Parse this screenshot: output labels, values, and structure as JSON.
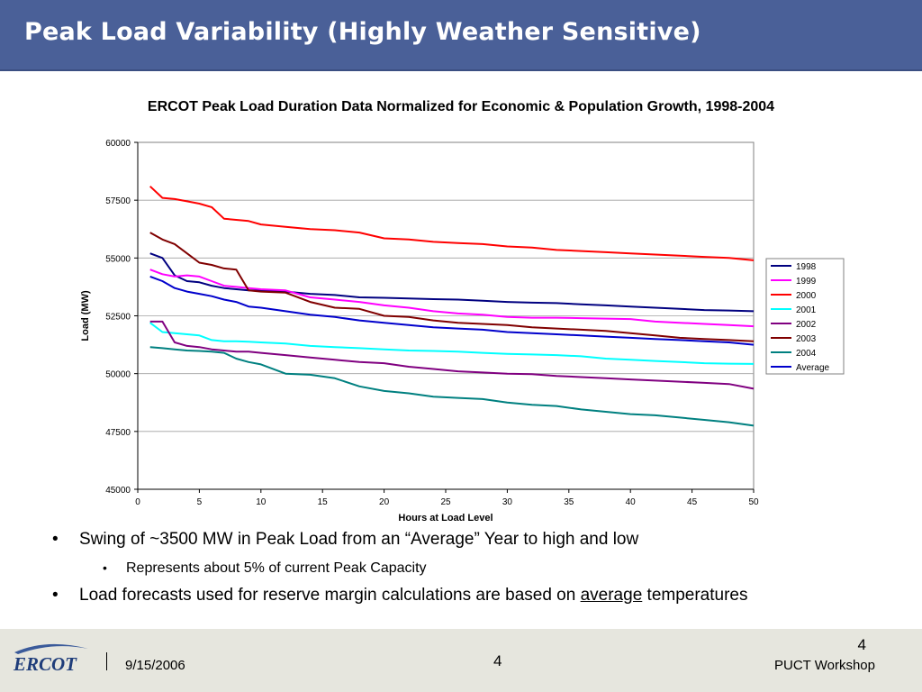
{
  "slide": {
    "title": "Peak Load Variability (Highly Weather Sensitive)",
    "bullets": [
      {
        "text": "Swing of ~3500 MW in Peak Load from an “Average” Year to high and low"
      },
      {
        "text": "Represents about 5% of current Peak Capacity"
      },
      {
        "before": "Load forecasts used for reserve margin calculations are based on ",
        "underlined": "average",
        "after": " temperatures"
      }
    ]
  },
  "footer": {
    "logo_text": "ERCOT",
    "date": "9/15/2006",
    "page_center": "4",
    "page_number": "4",
    "event": "PUCT Workshop"
  },
  "chart_data": {
    "type": "line",
    "title": "ERCOT Peak Load Duration Data Normalized for Economic & Population Growth, 1998-2004",
    "xlabel": "Hours at Load Level",
    "ylabel": "Load (MW)",
    "xlim": [
      0,
      50
    ],
    "ylim": [
      45000,
      60000
    ],
    "xticks": [
      0,
      5,
      10,
      15,
      20,
      25,
      30,
      35,
      40,
      45,
      50
    ],
    "yticks": [
      45000,
      47500,
      50000,
      52500,
      55000,
      57500,
      60000
    ],
    "grid": "horizontal",
    "legend_position": "right",
    "x": [
      1,
      2,
      3,
      4,
      5,
      6,
      7,
      8,
      9,
      10,
      12,
      14,
      16,
      18,
      20,
      22,
      24,
      26,
      28,
      30,
      32,
      34,
      36,
      38,
      40,
      42,
      44,
      46,
      48,
      50
    ],
    "series": [
      {
        "name": "1998",
        "color": "#000080",
        "values": [
          55200,
          55000,
          54250,
          54000,
          53950,
          53800,
          53700,
          53650,
          53600,
          53600,
          53550,
          53450,
          53400,
          53300,
          53280,
          53250,
          53220,
          53200,
          53150,
          53100,
          53070,
          53050,
          53000,
          52950,
          52900,
          52850,
          52800,
          52750,
          52730,
          52700
        ]
      },
      {
        "name": "1999",
        "color": "#ff00ff",
        "values": [
          54500,
          54300,
          54200,
          54250,
          54200,
          54000,
          53800,
          53750,
          53700,
          53650,
          53600,
          53300,
          53200,
          53100,
          52950,
          52850,
          52700,
          52600,
          52550,
          52450,
          52420,
          52420,
          52400,
          52380,
          52360,
          52250,
          52200,
          52150,
          52100,
          52050
        ]
      },
      {
        "name": "2000",
        "color": "#ff0000",
        "values": [
          58100,
          57600,
          57550,
          57450,
          57350,
          57200,
          56700,
          56650,
          56600,
          56450,
          56350,
          56250,
          56200,
          56100,
          55850,
          55800,
          55700,
          55650,
          55600,
          55500,
          55450,
          55350,
          55300,
          55250,
          55200,
          55150,
          55100,
          55050,
          55000,
          54900
        ]
      },
      {
        "name": "2001",
        "color": "#00ffff",
        "values": [
          52200,
          51800,
          51750,
          51700,
          51650,
          51450,
          51400,
          51400,
          51380,
          51350,
          51300,
          51200,
          51150,
          51100,
          51050,
          51000,
          50980,
          50950,
          50900,
          50850,
          50830,
          50800,
          50750,
          50650,
          50600,
          50550,
          50500,
          50450,
          50430,
          50420
        ]
      },
      {
        "name": "2002",
        "color": "#800080",
        "values": [
          52250,
          52250,
          51350,
          51200,
          51150,
          51050,
          51000,
          50950,
          50950,
          50900,
          50800,
          50700,
          50600,
          50500,
          50450,
          50300,
          50200,
          50100,
          50050,
          50000,
          49980,
          49900,
          49850,
          49800,
          49750,
          49700,
          49650,
          49600,
          49550,
          49350
        ]
      },
      {
        "name": "2003",
        "color": "#800000",
        "values": [
          56100,
          55800,
          55600,
          55200,
          54800,
          54700,
          54550,
          54500,
          53600,
          53550,
          53500,
          53100,
          52850,
          52800,
          52500,
          52450,
          52300,
          52200,
          52150,
          52100,
          52000,
          51950,
          51900,
          51850,
          51750,
          51650,
          51550,
          51500,
          51450,
          51400
        ]
      },
      {
        "name": "2004",
        "color": "#008080",
        "values": [
          51150,
          51100,
          51050,
          51000,
          50980,
          50950,
          50900,
          50650,
          50500,
          50400,
          50000,
          49950,
          49800,
          49450,
          49250,
          49150,
          49000,
          48950,
          48900,
          48750,
          48650,
          48600,
          48450,
          48350,
          48250,
          48200,
          48100,
          48000,
          47900,
          47750
        ]
      },
      {
        "name": "Average",
        "color": "#0000cc",
        "values": [
          54200,
          54000,
          53700,
          53550,
          53450,
          53350,
          53200,
          53100,
          52900,
          52850,
          52700,
          52550,
          52450,
          52300,
          52200,
          52100,
          52000,
          51950,
          51900,
          51800,
          51750,
          51700,
          51650,
          51600,
          51550,
          51500,
          51450,
          51400,
          51350,
          51250
        ]
      }
    ]
  }
}
